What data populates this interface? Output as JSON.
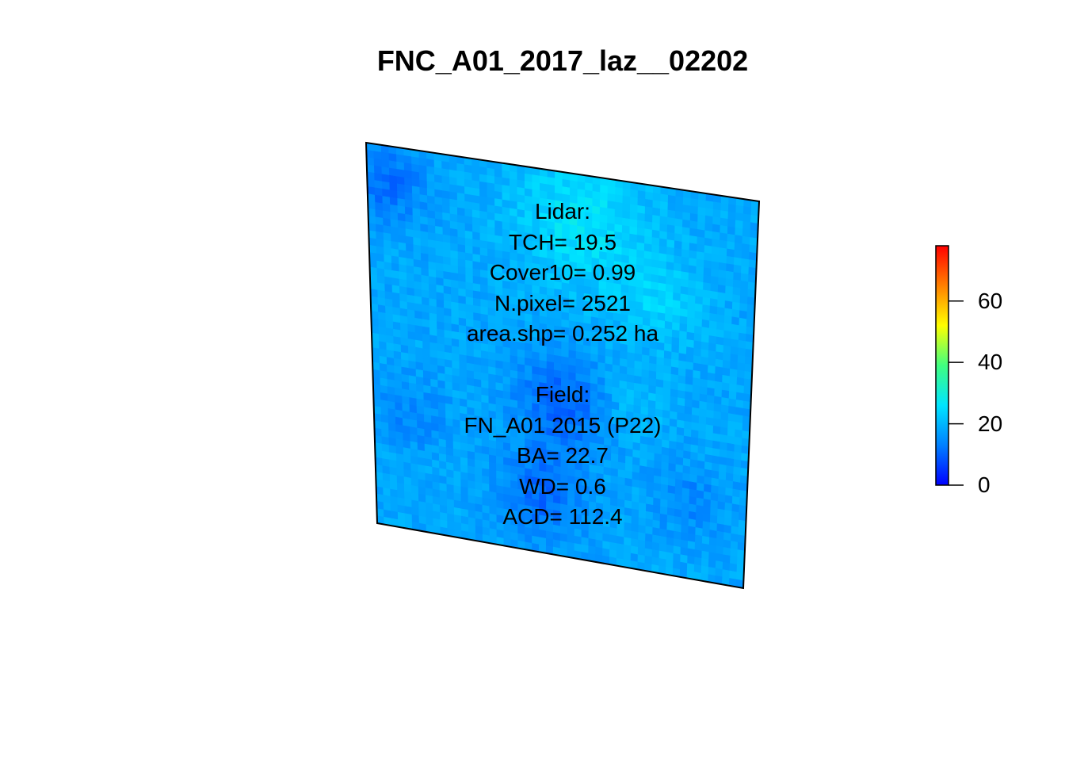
{
  "title": "FNC_A01_2017_laz__02202",
  "annotation": {
    "lidar_lines": [
      "Lidar:",
      "TCH= 19.5",
      "Cover10= 0.99",
      "N.pixel= 2521",
      "area.shp= 0.252 ha"
    ],
    "field_lines": [
      "Field:",
      "FN_A01 2015 (P22)",
      "BA= 22.7",
      "WD= 0.6",
      "ACD= 112.4"
    ]
  },
  "legend": {
    "type": "continuous colorbar",
    "min": 0,
    "max": 78,
    "ticks": [
      {
        "value": 0,
        "label": "0"
      },
      {
        "value": 20,
        "label": "20"
      },
      {
        "value": 40,
        "label": "40"
      },
      {
        "value": 60,
        "label": "60"
      }
    ],
    "palette": [
      "#0000ff",
      "#0080ff",
      "#00e5ff",
      "#40ff80",
      "#ffff00",
      "#ff8000",
      "#ff0000"
    ]
  },
  "raster": {
    "variable": "canopy height (m)",
    "value_range_shown": [
      5,
      30
    ],
    "dominant_color": "#1a8fe6",
    "plot_outline_color": "#000000"
  }
}
